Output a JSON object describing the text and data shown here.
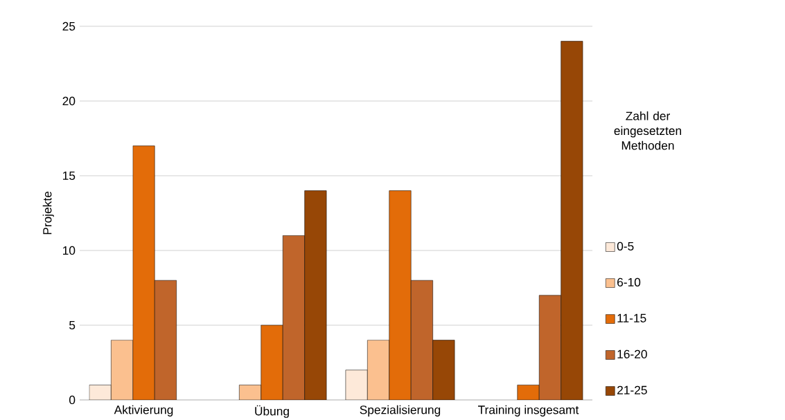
{
  "chart_data": {
    "type": "bar",
    "ylabel": "Projekte",
    "legend_title": "Zahl der eingesetzten Methoden",
    "categories": [
      "Aktivierung",
      "Übung",
      "Spezialisierung",
      "Training insgesamt"
    ],
    "series": [
      {
        "name": "0-5",
        "color": "#fde9d9",
        "values": [
          1,
          null,
          2,
          null
        ]
      },
      {
        "name": "6-10",
        "color": "#fbc08f",
        "values": [
          4,
          1,
          4,
          null
        ]
      },
      {
        "name": "11-15",
        "color": "#e36c09",
        "values": [
          17,
          5,
          14,
          1
        ]
      },
      {
        "name": "16-20",
        "color": "#c0652b",
        "values": [
          8,
          11,
          8,
          7
        ]
      },
      {
        "name": "21-25",
        "color": "#974706",
        "values": [
          null,
          14,
          4,
          24
        ]
      }
    ],
    "ylim": [
      0,
      25
    ],
    "yticks": [
      0,
      5,
      10,
      15,
      20,
      25
    ],
    "grid": "y",
    "legend": "right"
  }
}
